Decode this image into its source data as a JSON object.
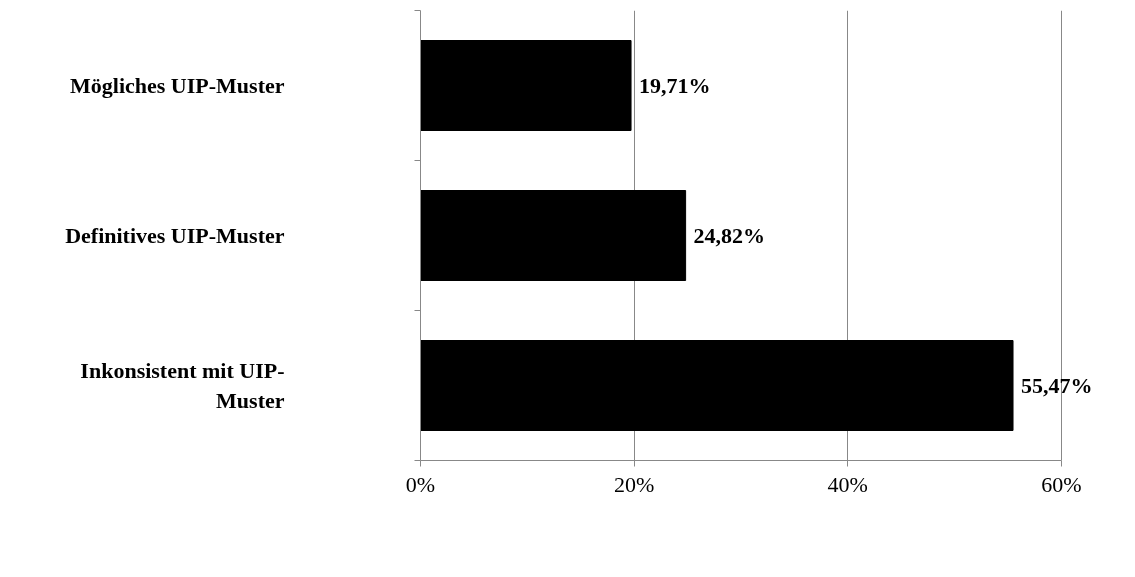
{
  "chart_data": {
    "type": "bar",
    "orientation": "horizontal",
    "categories": [
      "Mögliches UIP-Muster",
      "Definitives UIP-Muster",
      "Inkonsistent mit UIP-Muster"
    ],
    "values": [
      19.71,
      24.82,
      55.47
    ],
    "value_labels": [
      "19,71%",
      "24,82%",
      "55,47%"
    ],
    "color": "#000000",
    "xlim": [
      0,
      60
    ],
    "xticks": [
      {
        "value": 0,
        "label": "0%"
      },
      {
        "value": 20,
        "label": "20%"
      },
      {
        "value": 40,
        "label": "40%"
      },
      {
        "value": 60,
        "label": "60%"
      }
    ],
    "grid": "x"
  }
}
